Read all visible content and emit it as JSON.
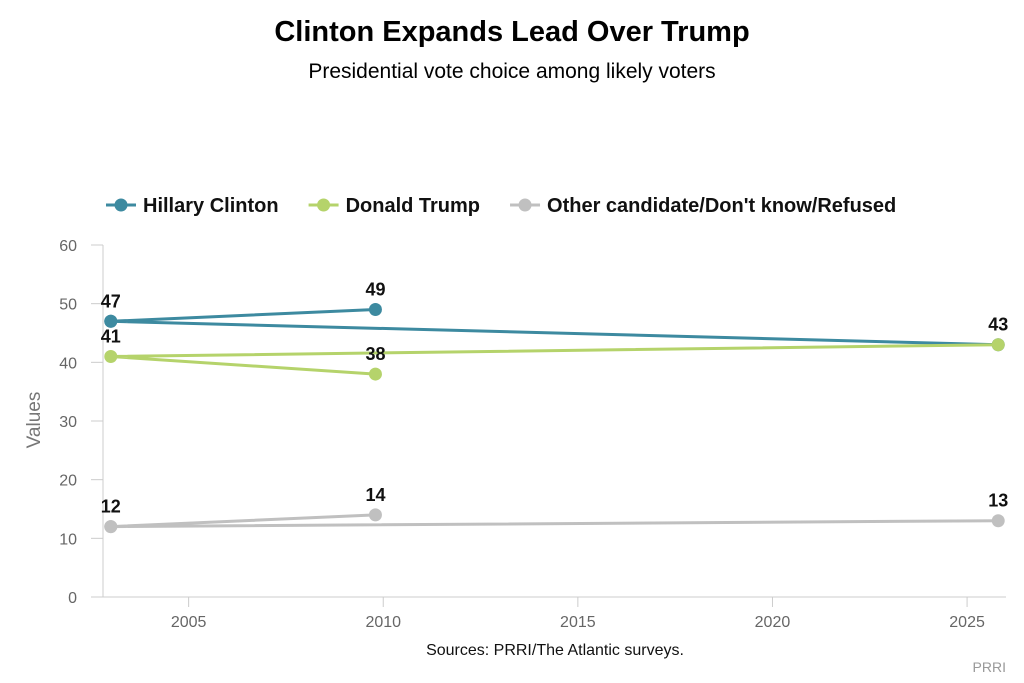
{
  "chart_data": {
    "type": "line",
    "title": "Clinton Expands Lead Over Trump",
    "subtitle": "Presidential vote choice among likely voters",
    "ylabel": "Values",
    "xlabel": "",
    "xlim": [
      2002.8,
      2026.0
    ],
    "ylim": [
      0,
      60
    ],
    "x_ticks": [
      "2005",
      "2010",
      "2015",
      "2020",
      "2025"
    ],
    "y_ticks": [
      "0",
      "10",
      "20",
      "30",
      "40",
      "50",
      "60"
    ],
    "grid": false,
    "legend_position": "top-left",
    "series": [
      {
        "name": "Hillary Clinton",
        "color": "#3d8aa0",
        "x": [
          2003.0,
          2009.8,
          2003.0,
          2025.8
        ],
        "y": [
          47,
          49,
          47,
          43
        ],
        "labels": [
          "47",
          "49",
          "",
          "43"
        ]
      },
      {
        "name": "Donald Trump",
        "color": "#b5d36b",
        "x": [
          2009.8,
          2003.0,
          2025.8
        ],
        "y": [
          38,
          41,
          43
        ],
        "labels": [
          "38",
          "41",
          ""
        ]
      },
      {
        "name": "Other candidate/Don't know/Refused",
        "color": "#c0c0c0",
        "x": [
          2003.0,
          2009.8,
          2003.0,
          2025.8
        ],
        "y": [
          12,
          14,
          12,
          13
        ],
        "labels": [
          "12",
          "14",
          "",
          "13"
        ]
      }
    ],
    "source": "Sources: PRRI/The Atlantic surveys.",
    "credit": "PRRI"
  }
}
